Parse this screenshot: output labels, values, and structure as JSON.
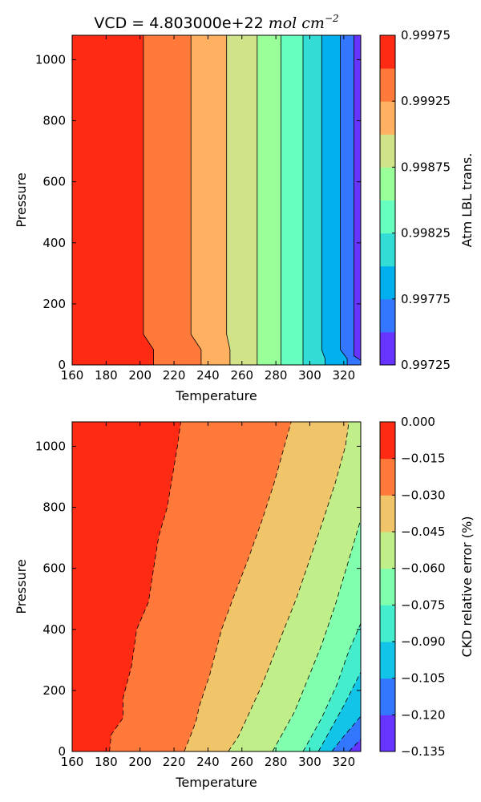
{
  "chart_data": [
    {
      "type": "contour",
      "title_main": "VCD = 4.803000e+22 ",
      "title_unit": "mol cm",
      "title_exp": "−2",
      "xlabel": "Temperature",
      "ylabel": "Pressure",
      "xlim": [
        160,
        330
      ],
      "ylim": [
        0,
        1080
      ],
      "xticks": [
        "160",
        "180",
        "200",
        "220",
        "240",
        "260",
        "280",
        "300",
        "320"
      ],
      "yticks": [
        "0",
        "200",
        "400",
        "600",
        "800",
        "1000"
      ],
      "colorbar_label": "Atm LBL trans.",
      "colorbar_ticks": [
        "0.99725",
        "0.99775",
        "0.99825",
        "0.99875",
        "0.99925",
        "0.99975"
      ],
      "levels": [
        0.99725,
        0.9975,
        0.99775,
        0.998,
        0.99825,
        0.9985,
        0.99875,
        0.999,
        0.99925,
        0.9995,
        0.99975
      ],
      "level_colors": [
        "#6633ff",
        "#3377ff",
        "#00b0ee",
        "#33ddd5",
        "#66ffc0",
        "#99ff99",
        "#d0e388",
        "#ffb060",
        "#ff7a3a",
        "#ff2a14"
      ],
      "line_style": "solid",
      "boundaries": [
        {
          "level": 0.9995,
          "points": [
            [
              202,
              1080
            ],
            [
              202,
              100
            ],
            [
              208,
              50
            ],
            [
              208,
              0
            ]
          ]
        },
        {
          "level": 0.99925,
          "points": [
            [
              230,
              1080
            ],
            [
              230,
              100
            ],
            [
              236,
              50
            ],
            [
              236,
              0
            ]
          ]
        },
        {
          "level": 0.999,
          "points": [
            [
              251,
              1080
            ],
            [
              251,
              100
            ],
            [
              253,
              50
            ],
            [
              253,
              0
            ]
          ]
        },
        {
          "level": 0.99875,
          "points": [
            [
              269,
              1080
            ],
            [
              269,
              0
            ]
          ]
        },
        {
          "level": 0.9985,
          "points": [
            [
              283,
              1080
            ],
            [
              283,
              0
            ]
          ]
        },
        {
          "level": 0.99825,
          "points": [
            [
              296,
              1080
            ],
            [
              296,
              0
            ]
          ]
        },
        {
          "level": 0.998,
          "points": [
            [
              307,
              1080
            ],
            [
              307,
              50
            ],
            [
              309,
              20
            ],
            [
              309,
              0
            ]
          ]
        },
        {
          "level": 0.99775,
          "points": [
            [
              318,
              1080
            ],
            [
              318,
              50
            ],
            [
              322,
              20
            ],
            [
              322,
              0
            ]
          ]
        },
        {
          "level": 0.9975,
          "points": [
            [
              326,
              1080
            ],
            [
              326,
              30
            ],
            [
              330,
              15
            ],
            [
              330,
              0
            ]
          ]
        }
      ]
    },
    {
      "type": "contour",
      "xlabel": "Temperature",
      "ylabel": "Pressure",
      "xlim": [
        160,
        330
      ],
      "ylim": [
        0,
        1080
      ],
      "xticks": [
        "160",
        "180",
        "200",
        "220",
        "240",
        "260",
        "280",
        "300",
        "320"
      ],
      "yticks": [
        "0",
        "200",
        "400",
        "600",
        "800",
        "1000"
      ],
      "colorbar_label": "CKD relative error (%)",
      "colorbar_ticks": [
        "0.000",
        "−0.015",
        "−0.030",
        "−0.045",
        "−0.060",
        "−0.075",
        "−0.090",
        "−0.105",
        "−0.120",
        "−0.135"
      ],
      "levels": [
        -0.135,
        -0.12,
        -0.105,
        -0.09,
        -0.075,
        -0.06,
        -0.045,
        -0.03,
        -0.015,
        0.0
      ],
      "level_colors": [
        "#6633ff",
        "#3377ff",
        "#11c4e8",
        "#44eecc",
        "#80ffae",
        "#c0ee88",
        "#f0c468",
        "#ff7a3a",
        "#ff2a14"
      ],
      "line_style": "dashed",
      "boundaries": [
        {
          "level": -0.015,
          "points": [
            [
              182,
              0
            ],
            [
              183,
              55
            ],
            [
              190,
              110
            ],
            [
              190,
              175
            ],
            [
              195,
              280
            ],
            [
              198,
              400
            ],
            [
              205,
              490
            ],
            [
              208,
              600
            ],
            [
              211,
              705
            ],
            [
              216,
              800
            ],
            [
              222,
              1000
            ],
            [
              224,
              1080
            ]
          ]
        },
        {
          "level": -0.03,
          "points": [
            [
              226,
              0
            ],
            [
              230,
              55
            ],
            [
              233,
              100
            ],
            [
              235,
              150
            ],
            [
              241,
              250
            ],
            [
              248,
              400
            ],
            [
              256,
              520
            ],
            [
              263,
              620
            ],
            [
              272,
              760
            ],
            [
              279,
              880
            ],
            [
              285,
              1000
            ],
            [
              289,
              1080
            ]
          ]
        },
        {
          "level": -0.045,
          "points": [
            [
              252,
              0
            ],
            [
              258,
              50
            ],
            [
              263,
              110
            ],
            [
              272,
              220
            ],
            [
              283,
              375
            ],
            [
              292,
              500
            ],
            [
              300,
              630
            ],
            [
              308,
              760
            ],
            [
              315,
              880
            ],
            [
              321,
              1000
            ],
            [
              323,
              1080
            ]
          ]
        },
        {
          "level": -0.06,
          "points": [
            [
              278,
              0
            ],
            [
              283,
              50
            ],
            [
              291,
              130
            ],
            [
              299,
              240
            ],
            [
              307,
              350
            ],
            [
              315,
              480
            ],
            [
              322,
              610
            ],
            [
              330,
              760
            ]
          ]
        },
        {
          "level": -0.075,
          "points": [
            [
              296,
              0
            ],
            [
              300,
              40
            ],
            [
              307,
              110
            ],
            [
              316,
              220
            ],
            [
              323,
              330
            ],
            [
              330,
              420
            ]
          ]
        },
        {
          "level": -0.09,
          "points": [
            [
              305,
              0
            ],
            [
              312,
              70
            ],
            [
              320,
              150
            ],
            [
              330,
              260
            ]
          ]
        },
        {
          "level": -0.105,
          "points": [
            [
              313,
              0
            ],
            [
              320,
              50
            ],
            [
              330,
              115
            ]
          ]
        },
        {
          "level": -0.12,
          "points": [
            [
              323,
              0
            ],
            [
              330,
              40
            ]
          ]
        }
      ]
    }
  ]
}
